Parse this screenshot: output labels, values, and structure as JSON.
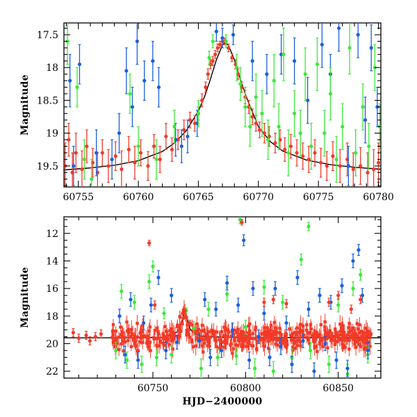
{
  "chart_data": [
    {
      "id": "top",
      "type": "scatter",
      "title": "",
      "xlabel": "",
      "ylabel": "Magnitude",
      "xlim": [
        60753.8,
        60780.2
      ],
      "ylim": [
        19.82,
        17.32
      ],
      "y_inverted": true,
      "grid": false,
      "xticks": [
        60755,
        60760,
        60765,
        60770,
        60775,
        60780
      ],
      "yticks": [
        17.5,
        18,
        18.5,
        19,
        19.5
      ],
      "curve": {
        "baseline": 19.58,
        "peak": 17.62,
        "t0": 60767.2,
        "x": [
          60753.8,
          60756,
          60758,
          60760,
          60762,
          60763,
          60764,
          60765,
          60765.5,
          60766,
          60766.5,
          60767,
          60767.2,
          60767.5,
          60768,
          60768.5,
          60769,
          60770,
          60771,
          60772,
          60774,
          60776,
          60778,
          60780.2
        ],
        "y": [
          19.56,
          19.53,
          19.49,
          19.42,
          19.28,
          19.15,
          18.96,
          18.66,
          18.45,
          18.18,
          17.88,
          17.66,
          17.62,
          17.66,
          17.88,
          18.18,
          18.45,
          18.9,
          19.13,
          19.27,
          19.41,
          19.48,
          19.52,
          19.55
        ]
      },
      "series": [
        {
          "color": "#f23a28",
          "x": [
            60753.9,
            60754.2,
            60754.5,
            60754.8,
            60755.3,
            60755.7,
            60756.2,
            60756.6,
            60757.0,
            60757.5,
            60758.1,
            60758.6,
            60759.2,
            60759.7,
            60760.2,
            60760.8,
            60761.3,
            60761.8,
            60762.3,
            60762.8,
            60763.3,
            60763.8,
            60764.3,
            60764.7,
            60765.0,
            60765.3,
            60765.6,
            60765.8,
            60766.0,
            60766.2,
            60766.4,
            60766.6,
            60766.8,
            60767.0,
            60767.2,
            60767.5,
            60767.8,
            60768.1,
            60768.3,
            60768.6,
            60768.9,
            60769.2,
            60769.5,
            60769.8,
            60770.1,
            60770.5,
            60770.9,
            60771.4,
            60771.8,
            60772.2,
            60772.7,
            60773.2,
            60773.7,
            60774.2,
            60774.7,
            60775.2,
            60775.7,
            60776.2,
            60776.8,
            60777.4,
            60777.9,
            60778.5,
            60779.1,
            60779.6,
            60780.0
          ],
          "y": [
            19.5,
            19.1,
            19.6,
            19.3,
            19.55,
            19.2,
            19.45,
            19.6,
            19.3,
            19.5,
            19.35,
            19.55,
            19.25,
            19.45,
            19.3,
            19.5,
            19.2,
            19.4,
            19.05,
            19.25,
            19.1,
            18.95,
            18.8,
            18.85,
            18.7,
            18.5,
            18.3,
            18.1,
            17.95,
            17.9,
            17.8,
            17.7,
            17.65,
            17.6,
            17.6,
            17.7,
            17.85,
            17.95,
            18.1,
            18.3,
            18.45,
            18.6,
            18.75,
            18.85,
            18.95,
            19.0,
            19.05,
            19.15,
            19.1,
            19.25,
            19.2,
            19.3,
            19.35,
            19.4,
            19.3,
            19.45,
            19.5,
            19.35,
            19.5,
            19.4,
            19.55,
            19.5,
            19.6,
            19.55,
            19.45
          ],
          "err": [
            0.35,
            0.25,
            0.3,
            0.3,
            0.28,
            0.25,
            0.22,
            0.3,
            0.2,
            0.25,
            0.22,
            0.28,
            0.2,
            0.25,
            0.2,
            0.22,
            0.18,
            0.2,
            0.2,
            0.18,
            0.15,
            0.15,
            0.12,
            0.12,
            0.1,
            0.1,
            0.08,
            0.08,
            0.07,
            0.07,
            0.06,
            0.06,
            0.05,
            0.05,
            0.05,
            0.06,
            0.06,
            0.07,
            0.08,
            0.08,
            0.1,
            0.1,
            0.12,
            0.12,
            0.12,
            0.15,
            0.15,
            0.15,
            0.15,
            0.18,
            0.18,
            0.2,
            0.2,
            0.2,
            0.2,
            0.22,
            0.22,
            0.22,
            0.25,
            0.25,
            0.25,
            0.28,
            0.3,
            0.3,
            0.3
          ]
        },
        {
          "color": "#1a5fdc",
          "x": [
            60754.3,
            60754.6,
            60755.1,
            60756.5,
            60757.8,
            60758.4,
            60759.0,
            60759.5,
            60759.9,
            60760.5,
            60761.2,
            60761.7,
            60763.1,
            60763.6,
            60764.1,
            60764.9,
            60766.5,
            60767.0,
            60767.9,
            60769.5,
            60770.7,
            60771.9,
            60773.0,
            60774.1,
            60775.3,
            60776.0,
            60776.7,
            60777.5,
            60778.3,
            60778.9,
            60779.4,
            60779.9
          ],
          "y": [
            18.2,
            19.5,
            17.95,
            19.3,
            19.4,
            19.0,
            18.05,
            18.6,
            17.6,
            18.2,
            17.9,
            18.3,
            19.1,
            19.2,
            19.05,
            18.85,
            17.45,
            17.55,
            17.5,
            17.9,
            18.1,
            17.8,
            17.9,
            18.5,
            17.65,
            18.1,
            17.4,
            19.5,
            17.5,
            18.8,
            17.7,
            18.6
          ],
          "err": [
            0.4,
            0.3,
            0.3,
            0.35,
            0.3,
            0.3,
            0.35,
            0.3,
            0.35,
            0.3,
            0.3,
            0.3,
            0.25,
            0.25,
            0.25,
            0.2,
            0.15,
            0.15,
            0.15,
            0.3,
            0.3,
            0.3,
            0.35,
            0.35,
            0.35,
            0.3,
            0.35,
            0.3,
            0.35,
            0.35,
            0.35,
            0.3
          ]
        },
        {
          "color": "#3de83a",
          "x": [
            60754.1,
            60754.9,
            60755.5,
            60756.1,
            60759.3,
            60760.0,
            60761.5,
            60763.0,
            60765.0,
            60765.9,
            60766.2,
            60767.3,
            60768.2,
            60768.5,
            60768.9,
            60769.3,
            60769.8,
            60770.3,
            60770.8,
            60771.3,
            60771.7,
            60772.1,
            60772.5,
            60773.0,
            60773.5,
            60773.9,
            60774.4,
            60774.9,
            60775.5,
            60776.0,
            60776.5,
            60777.0,
            60777.6,
            60778.1,
            60778.7,
            60779.2,
            60779.7,
            60780.1
          ],
          "y": [
            17.6,
            18.3,
            19.4,
            19.7,
            18.4,
            19.2,
            19.4,
            18.9,
            18.7,
            17.85,
            17.6,
            17.6,
            18.0,
            18.25,
            18.6,
            18.9,
            18.45,
            18.7,
            19.1,
            18.2,
            18.9,
            17.8,
            19.3,
            18.7,
            19.0,
            18.1,
            19.2,
            17.95,
            19.0,
            18.4,
            19.4,
            18.9,
            17.7,
            19.3,
            18.6,
            19.2,
            18.0,
            18.9
          ],
          "err": [
            0.35,
            0.3,
            0.3,
            0.3,
            0.3,
            0.3,
            0.3,
            0.25,
            0.2,
            0.1,
            0.1,
            0.1,
            0.2,
            0.25,
            0.3,
            0.3,
            0.35,
            0.35,
            0.3,
            0.4,
            0.35,
            0.4,
            0.35,
            0.35,
            0.35,
            0.4,
            0.35,
            0.4,
            0.35,
            0.4,
            0.35,
            0.35,
            0.4,
            0.35,
            0.35,
            0.35,
            0.35,
            0.35
          ]
        }
      ]
    },
    {
      "id": "bottom",
      "type": "scatter",
      "title": "",
      "xlabel": "HJD−2400000",
      "ylabel": "Magnitude",
      "xlim": [
        60702,
        60873
      ],
      "ylim": [
        22.5,
        10.8
      ],
      "y_inverted": true,
      "grid": false,
      "xticks": [
        60750,
        60800,
        60850
      ],
      "yticks": [
        12,
        14,
        16,
        18,
        20,
        22
      ],
      "curve": {
        "baseline": 19.58,
        "peak": 17.62,
        "t0": 60767.2,
        "x": [
          60702,
          60740,
          60755,
          60760,
          60763,
          60765,
          60766,
          60767.2,
          60768.5,
          60770,
          60772,
          60776,
          60790,
          60873
        ],
        "y": [
          19.58,
          19.57,
          19.54,
          19.42,
          19.15,
          18.66,
          18.18,
          17.62,
          18.18,
          18.9,
          19.27,
          19.45,
          19.55,
          19.58
        ]
      },
      "series": [
        {
          "color": "#3de83a",
          "x": [
            60730,
            60733,
            60736,
            60740,
            60744,
            60748,
            60750,
            60752,
            60756,
            60760,
            60768,
            60772,
            60776,
            60780,
            60785,
            60790,
            60795,
            60797,
            60800,
            60805,
            60810,
            60815,
            60820,
            60825,
            60830,
            60834,
            60835,
            60840,
            60845,
            60850,
            60855,
            60858,
            60862,
            60866
          ],
          "y": [
            20.5,
            16.2,
            21.2,
            17.0,
            21.5,
            15.5,
            14.4,
            21.0,
            17.8,
            20.8,
            17.6,
            18.9,
            21.8,
            17.5,
            21.0,
            16.4,
            20.9,
            11.0,
            18.8,
            21.8,
            15.9,
            22.0,
            17.0,
            21.0,
            13.9,
            11.5,
            20.5,
            16.5,
            21.5,
            17.2,
            22.2,
            16.0,
            15.0,
            20.8
          ],
          "err": [
            0.6,
            0.5,
            0.6,
            0.5,
            0.6,
            0.5,
            0.4,
            0.6,
            0.4,
            0.6,
            0.2,
            0.5,
            0.7,
            0.5,
            0.6,
            0.5,
            0.6,
            0.3,
            0.5,
            0.7,
            0.5,
            0.7,
            0.5,
            0.6,
            0.4,
            0.3,
            0.6,
            0.5,
            0.6,
            0.5,
            0.7,
            0.5,
            0.4,
            0.6
          ]
        },
        {
          "color": "#1a5fdc",
          "x": [
            60732,
            60735,
            60738,
            60742,
            60745,
            60749,
            60753,
            60757,
            60760,
            60763,
            60775,
            60778,
            60781,
            60784,
            60787,
            60790,
            60793,
            60796,
            60799,
            60802,
            60804,
            60807,
            60810,
            60813,
            60816,
            60819,
            60822,
            60825,
            60828,
            60831,
            60834,
            60837,
            60840,
            60843,
            60846,
            60849,
            60852,
            60855,
            60858,
            60861,
            60863,
            60866
          ],
          "y": [
            18.0,
            20.8,
            16.8,
            21.2,
            18.5,
            17.2,
            15.2,
            20.5,
            16.5,
            19.9,
            19.8,
            16.8,
            21.0,
            17.5,
            20.5,
            15.6,
            19.0,
            17.2,
            12.5,
            21.2,
            16.0,
            19.5,
            17.8,
            21.0,
            16.0,
            20.2,
            18.5,
            21.5,
            15.2,
            19.8,
            17.5,
            22.0,
            16.5,
            20.0,
            17.0,
            21.2,
            15.8,
            21.8,
            14.0,
            13.2,
            16.5,
            20.5
          ],
          "err": [
            0.5,
            0.6,
            0.5,
            0.6,
            0.5,
            0.5,
            0.5,
            0.6,
            0.5,
            0.5,
            0.5,
            0.5,
            0.6,
            0.5,
            0.5,
            0.5,
            0.5,
            0.5,
            0.4,
            0.6,
            0.5,
            0.5,
            0.5,
            0.6,
            0.5,
            0.6,
            0.5,
            0.6,
            0.5,
            0.5,
            0.5,
            0.6,
            0.5,
            0.5,
            0.5,
            0.6,
            0.5,
            0.6,
            0.5,
            0.4,
            0.5,
            0.6
          ]
        },
        {
          "color": "#f23a28",
          "x": [
            60707,
            60710,
            60714,
            60716,
            60719,
            60722,
            60748,
            60751,
            60767.2,
            60770,
            60798,
            60810,
            60815,
            60822,
            60845,
            60850,
            60857,
            60862
          ],
          "y": [
            19.2,
            19.6,
            19.4,
            19.8,
            19.5,
            19.3,
            12.7,
            17.2,
            17.62,
            18.5,
            11.2,
            17.0,
            16.8,
            17.1,
            17.0,
            16.5,
            17.5,
            16.8
          ],
          "err": [
            0.3,
            0.3,
            0.3,
            0.3,
            0.3,
            0.3,
            0.2,
            0.3,
            0.1,
            0.2,
            0.2,
            0.3,
            0.3,
            0.3,
            0.3,
            0.3,
            0.3,
            0.3
          ]
        }
      ],
      "dense_band": {
        "color": "#f23a28",
        "x_range": [
          60728,
          60868
        ],
        "mag_center": 19.55,
        "mag_spread": 0.9,
        "count": 520
      }
    }
  ]
}
